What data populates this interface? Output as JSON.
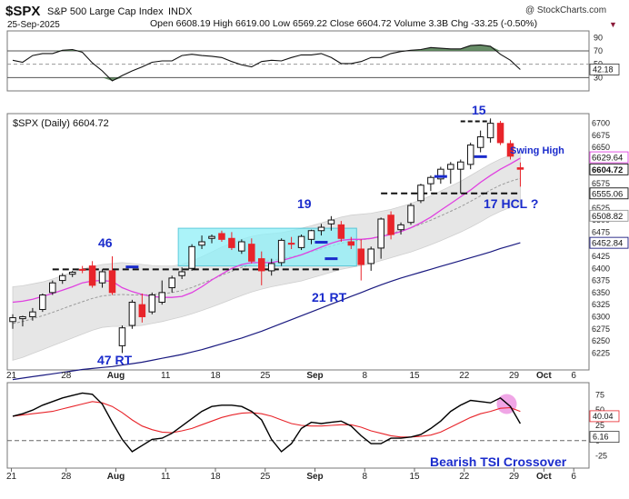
{
  "header": {
    "symbol": "$SPX",
    "name": "S&P 500 Large Cap Index",
    "exchange": "INDX",
    "date": "25-Sep-2025",
    "quote": "Open 6608.19  High 6619.00  Low 6569.22  Close 6604.72  Volume 3.3B  Chg -33.25 (-0.50%)",
    "credit": "@ StockCharts.com",
    "down_marker": "▼"
  },
  "main_label": "$SPX (Daily) 6604.72",
  "annotations": {
    "n46": "46",
    "n47rt": "47 RT",
    "n19": "19",
    "n21rt": "21 RT",
    "n15": "15",
    "swing_high": "Swing High",
    "hcl": "17 HCL ?",
    "tsi_note": "Bearish TSI Crossover"
  },
  "colors": {
    "up": "#ffffff",
    "down": "#e8242a",
    "ma20": "#e040e0",
    "ma50": "#9a9a9a",
    "ma200": "#1a1a80",
    "band": "#e6e6e6",
    "box": "#8ff0f8",
    "label": "#1a2bcc",
    "tsi": "#000000",
    "signal": "#e8242a",
    "rsi_fill": "#4e7a4e"
  },
  "chart_data": [
    {
      "type": "line",
      "name": "rsi-panel",
      "y_ticks": [
        90,
        70,
        50,
        30
      ],
      "overbought": 70,
      "oversold": 30,
      "last_value": "42.18",
      "values": [
        56,
        53,
        63,
        66,
        66,
        71,
        72,
        68,
        52,
        40,
        25,
        33,
        40,
        46,
        53,
        55,
        55,
        63,
        65,
        63,
        62,
        60,
        54,
        49,
        46,
        54,
        56,
        55,
        60,
        64,
        64,
        66,
        60,
        51,
        51,
        54,
        60,
        60,
        66,
        69,
        71,
        72,
        75,
        74,
        73,
        73,
        78,
        79,
        77,
        65,
        56,
        42
      ],
      "ylim": [
        10,
        100
      ]
    },
    {
      "type": "candlestick",
      "name": "price-panel",
      "ylim": [
        6190,
        6720
      ],
      "y_ticks": [
        6700,
        6675,
        6650,
        6625,
        6600,
        6575,
        6550,
        6525,
        6500,
        6475,
        6450,
        6425,
        6400,
        6375,
        6350,
        6325,
        6300,
        6275,
        6250,
        6225
      ],
      "value_tags": [
        "6629.64",
        "6604.72",
        "6555.06",
        "6508.82",
        "6452.84"
      ],
      "x_labels": [
        "21",
        "28",
        "Aug",
        "11",
        "18",
        "25",
        "Sep",
        "8",
        "15",
        "22",
        "29",
        "Oct",
        "6"
      ],
      "candles": [
        [
          6290,
          6305,
          6275,
          6298
        ],
        [
          6296,
          6302,
          6280,
          6300
        ],
        [
          6300,
          6318,
          6292,
          6310
        ],
        [
          6315,
          6348,
          6310,
          6345
        ],
        [
          6350,
          6375,
          6345,
          6370
        ],
        [
          6375,
          6390,
          6368,
          6385
        ],
        [
          6388,
          6395,
          6382,
          6392
        ],
        [
          6398,
          6405,
          6390,
          6396
        ],
        [
          6405,
          6415,
          6360,
          6365
        ],
        [
          6370,
          6398,
          6360,
          6393
        ],
        [
          6395,
          6425,
          6345,
          6350
        ],
        [
          6240,
          6282,
          6225,
          6277
        ],
        [
          6282,
          6335,
          6275,
          6330
        ],
        [
          6325,
          6348,
          6288,
          6300
        ],
        [
          6310,
          6350,
          6305,
          6345
        ],
        [
          6330,
          6375,
          6325,
          6350
        ],
        [
          6360,
          6385,
          6350,
          6380
        ],
        [
          6385,
          6402,
          6378,
          6393
        ],
        [
          6400,
          6450,
          6395,
          6445
        ],
        [
          6448,
          6468,
          6440,
          6455
        ],
        [
          6462,
          6470,
          6452,
          6466
        ],
        [
          6472,
          6478,
          6455,
          6460
        ],
        [
          6462,
          6475,
          6438,
          6443
        ],
        [
          6436,
          6460,
          6430,
          6455
        ],
        [
          6450,
          6462,
          6410,
          6415
        ],
        [
          6420,
          6435,
          6365,
          6395
        ],
        [
          6395,
          6420,
          6385,
          6410
        ],
        [
          6412,
          6462,
          6405,
          6458
        ],
        [
          6452,
          6465,
          6440,
          6450
        ],
        [
          6443,
          6470,
          6438,
          6466
        ],
        [
          6460,
          6480,
          6450,
          6478
        ],
        [
          6478,
          6492,
          6468,
          6485
        ],
        [
          6492,
          6508,
          6478,
          6500
        ],
        [
          6490,
          6498,
          6455,
          6462
        ],
        [
          6455,
          6465,
          6440,
          6448
        ],
        [
          6440,
          6460,
          6375,
          6408
        ],
        [
          6410,
          6445,
          6395,
          6440
        ],
        [
          6442,
          6505,
          6420,
          6502
        ],
        [
          6510,
          6518,
          6460,
          6470
        ],
        [
          6480,
          6495,
          6470,
          6490
        ],
        [
          6495,
          6535,
          6490,
          6530
        ],
        [
          6540,
          6575,
          6535,
          6572
        ],
        [
          6575,
          6592,
          6560,
          6588
        ],
        [
          6585,
          6610,
          6575,
          6605
        ],
        [
          6605,
          6620,
          6575,
          6615
        ],
        [
          6605,
          6625,
          6555,
          6620
        ],
        [
          6615,
          6660,
          6605,
          6655
        ],
        [
          6650,
          6685,
          6640,
          6672
        ],
        [
          6670,
          6710,
          6660,
          6700
        ],
        [
          6700,
          6705,
          6655,
          6660
        ],
        [
          6658,
          6665,
          6625,
          6632
        ],
        [
          6608,
          6619,
          6569,
          6605
        ]
      ],
      "ma20": [
        6330,
        6332,
        6336,
        6342,
        6348,
        6355,
        6362,
        6370,
        6374,
        6375,
        6373,
        6360,
        6352,
        6346,
        6342,
        6340,
        6340,
        6342,
        6350,
        6362,
        6376,
        6388,
        6400,
        6408,
        6412,
        6412,
        6412,
        6416,
        6422,
        6428,
        6436,
        6444,
        6452,
        6458,
        6460,
        6460,
        6462,
        6466,
        6470,
        6476,
        6484,
        6494,
        6506,
        6520,
        6534,
        6548,
        6562,
        6578,
        6592,
        6605,
        6616,
        6628
      ],
      "bb_upper": [
        6362,
        6364,
        6368,
        6372,
        6378,
        6385,
        6392,
        6398,
        6404,
        6408,
        6410,
        6412,
        6410,
        6408,
        6406,
        6405,
        6405,
        6408,
        6415,
        6424,
        6434,
        6444,
        6452,
        6460,
        6466,
        6470,
        6472,
        6474,
        6478,
        6483,
        6488,
        6494,
        6500,
        6506,
        6510,
        6512,
        6514,
        6518,
        6522,
        6528,
        6534,
        6542,
        6550,
        6560,
        6570,
        6580,
        6592,
        6604,
        6616,
        6626,
        6634,
        6640
      ],
      "bb_lower": [
        6210,
        6216,
        6224,
        6232,
        6240,
        6248,
        6256,
        6264,
        6272,
        6278,
        6280,
        6280,
        6280,
        6282,
        6286,
        6290,
        6295,
        6300,
        6306,
        6313,
        6320,
        6328,
        6336,
        6344,
        6351,
        6357,
        6362,
        6366,
        6370,
        6374,
        6380,
        6386,
        6392,
        6398,
        6402,
        6406,
        6410,
        6416,
        6422,
        6428,
        6434,
        6441,
        6449,
        6457,
        6466,
        6475,
        6485,
        6496,
        6508,
        6518,
        6526,
        6532
      ],
      "ma200": [
        6170,
        6173,
        6176,
        6179,
        6182,
        6185,
        6188,
        6191,
        6193,
        6195,
        6197,
        6200,
        6203,
        6206,
        6210,
        6214,
        6218,
        6222,
        6227,
        6232,
        6238,
        6244,
        6250,
        6256,
        6263,
        6270,
        6278,
        6286,
        6294,
        6302,
        6310,
        6318,
        6326,
        6334,
        6342,
        6350,
        6358,
        6366,
        6373,
        6380,
        6386,
        6392,
        6398,
        6404,
        6410,
        6416,
        6422,
        6428,
        6434,
        6441,
        6447,
        6453
      ]
    },
    {
      "type": "line",
      "name": "tsi-panel",
      "y_ticks": [
        75,
        50,
        25,
        0,
        -25
      ],
      "value_tags": [
        "40.04",
        "6.16"
      ],
      "ylim": [
        -45,
        95
      ],
      "tsi": [
        40,
        44,
        50,
        58,
        64,
        70,
        74,
        78,
        76,
        60,
        30,
        2,
        -18,
        -8,
        2,
        4,
        12,
        24,
        36,
        48,
        56,
        58,
        58,
        56,
        48,
        34,
        2,
        -18,
        -5,
        20,
        30,
        28,
        30,
        32,
        24,
        8,
        -5,
        -5,
        4,
        4,
        6,
        10,
        20,
        32,
        48,
        58,
        66,
        64,
        62,
        70,
        56,
        28
      ],
      "signal": [
        40,
        42,
        44,
        46,
        48,
        52,
        56,
        60,
        64,
        62,
        56,
        46,
        34,
        24,
        18,
        14,
        13,
        16,
        20,
        26,
        32,
        38,
        42,
        45,
        46,
        44,
        40,
        34,
        28,
        25,
        24,
        24,
        25,
        26,
        26,
        22,
        16,
        12,
        8,
        6,
        6,
        7,
        9,
        14,
        22,
        30,
        38,
        44,
        48,
        53,
        54,
        48
      ]
    }
  ]
}
